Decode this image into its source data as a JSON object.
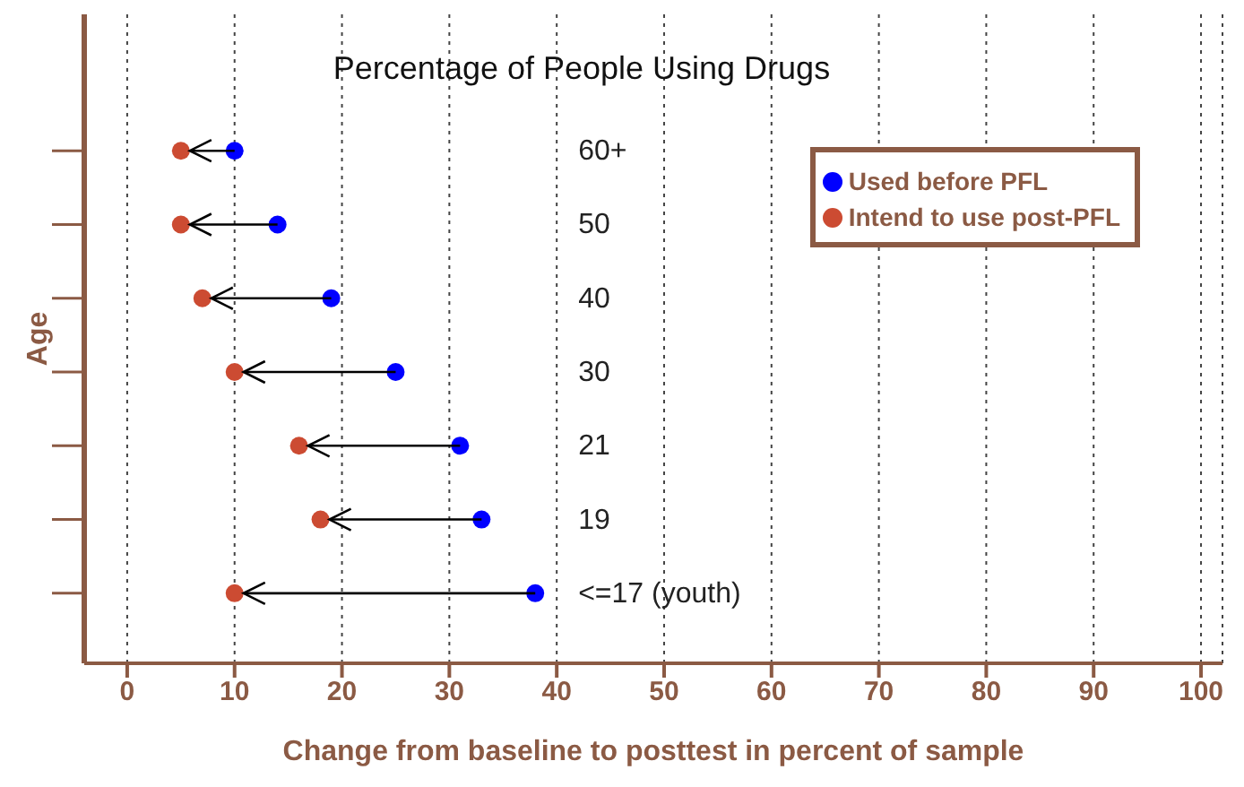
{
  "chart_data": {
    "type": "scatter",
    "title": "Percentage of People Using Drugs",
    "xlabel": "Change from baseline to posttest in percent of sample",
    "ylabel": "Age",
    "categories": [
      "60+",
      "50",
      "40",
      "30",
      "21",
      "19",
      "<=17 (youth)"
    ],
    "series": [
      {
        "name": "Used before PFL",
        "color": "#0000ff",
        "values": [
          10,
          14,
          19,
          25,
          31,
          33,
          38
        ]
      },
      {
        "name": "Intend to use post-PFL",
        "color": "#cc4b32",
        "values": [
          5,
          5,
          7,
          10,
          16,
          18,
          10
        ]
      }
    ],
    "orientation": "horizontal",
    "xlim": [
      -4,
      102
    ],
    "xticks": [
      0,
      10,
      20,
      30,
      40,
      50,
      60,
      70,
      80,
      90,
      100
    ],
    "grid": "x",
    "legend": "top right",
    "marker": "circle"
  }
}
